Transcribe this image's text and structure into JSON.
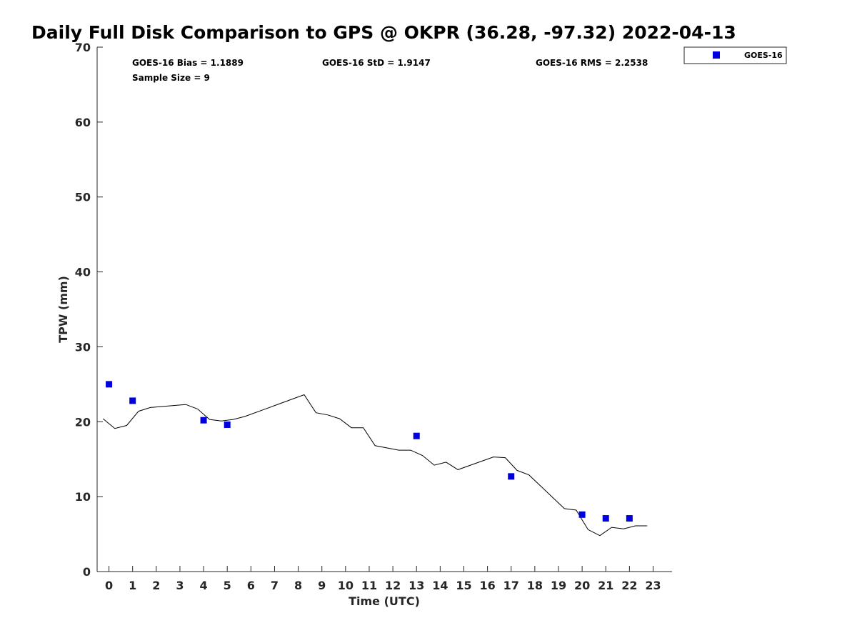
{
  "chart_data": {
    "type": "scatter",
    "title": "Daily Full Disk Comparison to GPS @ OKPR (36.28, -97.32) 2022-04-13",
    "xlabel": "Time (UTC)",
    "ylabel": "TPW (mm)",
    "xlim": [
      -0.5,
      23.8
    ],
    "ylim": [
      0,
      70
    ],
    "x_ticks": [
      0,
      1,
      2,
      3,
      4,
      5,
      6,
      7,
      8,
      9,
      10,
      11,
      12,
      13,
      14,
      15,
      16,
      17,
      18,
      19,
      20,
      21,
      22,
      23
    ],
    "y_ticks": [
      0,
      10,
      20,
      30,
      40,
      50,
      60,
      70
    ],
    "grid": false,
    "legend_position": "top-right",
    "stats": {
      "bias": "GOES-16 Bias = 1.1889",
      "std": "GOES-16 StD = 1.9147",
      "rms": "GOES-16 RMS = 2.2538",
      "sample_size": "Sample Size = 9"
    },
    "series": [
      {
        "name": "GOES-16",
        "kind": "scatter",
        "color": "#0000dd",
        "marker": "square",
        "points": [
          {
            "x": 0,
            "y": 25.0
          },
          {
            "x": 1,
            "y": 22.8
          },
          {
            "x": 4,
            "y": 20.2
          },
          {
            "x": 5,
            "y": 19.6
          },
          {
            "x": 13,
            "y": 18.1
          },
          {
            "x": 17,
            "y": 12.7
          },
          {
            "x": 20,
            "y": 7.6
          },
          {
            "x": 21,
            "y": 7.1
          },
          {
            "x": 22,
            "y": 7.1
          }
        ]
      },
      {
        "kind": "line",
        "color": "#000000",
        "points": [
          {
            "x": -0.25,
            "y": 20.4
          },
          {
            "x": 0.25,
            "y": 19.1
          },
          {
            "x": 0.75,
            "y": 19.5
          },
          {
            "x": 1.25,
            "y": 21.4
          },
          {
            "x": 1.75,
            "y": 21.9
          },
          {
            "x": 3.25,
            "y": 22.3
          },
          {
            "x": 3.75,
            "y": 21.7
          },
          {
            "x": 4.25,
            "y": 20.3
          },
          {
            "x": 4.75,
            "y": 20.1
          },
          {
            "x": 5.25,
            "y": 20.3
          },
          {
            "x": 5.75,
            "y": 20.7
          },
          {
            "x": 8.25,
            "y": 23.6
          },
          {
            "x": 8.75,
            "y": 21.2
          },
          {
            "x": 9.25,
            "y": 20.9
          },
          {
            "x": 9.75,
            "y": 20.4
          },
          {
            "x": 10.25,
            "y": 19.2
          },
          {
            "x": 10.75,
            "y": 19.2
          },
          {
            "x": 11.25,
            "y": 16.8
          },
          {
            "x": 12.25,
            "y": 16.2
          },
          {
            "x": 12.75,
            "y": 16.2
          },
          {
            "x": 13.25,
            "y": 15.5
          },
          {
            "x": 13.75,
            "y": 14.2
          },
          {
            "x": 14.25,
            "y": 14.6
          },
          {
            "x": 14.75,
            "y": 13.6
          },
          {
            "x": 16.25,
            "y": 15.3
          },
          {
            "x": 16.75,
            "y": 15.2
          },
          {
            "x": 17.25,
            "y": 13.5
          },
          {
            "x": 17.75,
            "y": 12.9
          },
          {
            "x": 19.25,
            "y": 8.4
          },
          {
            "x": 19.75,
            "y": 8.2
          },
          {
            "x": 20.25,
            "y": 5.6
          },
          {
            "x": 20.75,
            "y": 4.8
          },
          {
            "x": 21.25,
            "y": 5.9
          },
          {
            "x": 21.75,
            "y": 5.7
          },
          {
            "x": 22.25,
            "y": 6.1
          },
          {
            "x": 22.75,
            "y": 6.1
          }
        ]
      }
    ]
  }
}
